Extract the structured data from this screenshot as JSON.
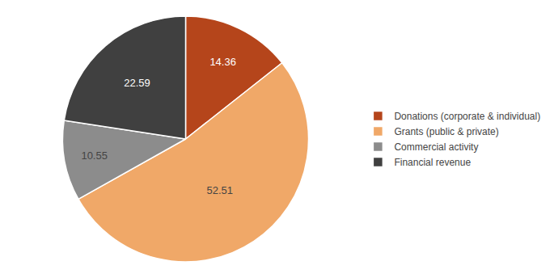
{
  "chart_data": {
    "type": "pie",
    "categories": [
      "Donations (corporate & individual)",
      "Grants (public & private)",
      "Commercial activity",
      "Financial revenue"
    ],
    "values": [
      14.36,
      52.51,
      10.55,
      22.59
    ],
    "colors": [
      "#b5451b",
      "#f0a868",
      "#8c8c8c",
      "#404040"
    ],
    "data_labels": true,
    "legend": "right"
  }
}
